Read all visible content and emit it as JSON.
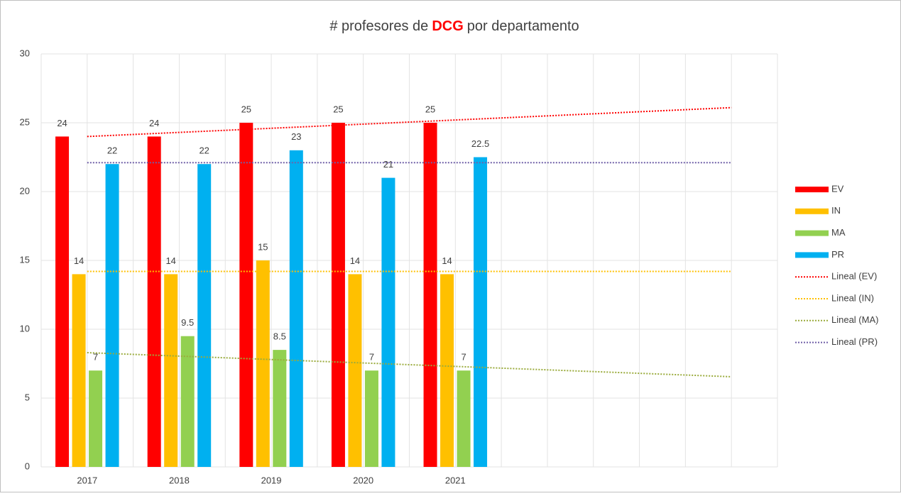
{
  "chart_data": {
    "type": "bar",
    "title": [
      "# profesores de",
      "DCG",
      "por departamento"
    ],
    "title_highlight_color": "#ff0000",
    "categories": [
      "2017",
      "2018",
      "2019",
      "2020",
      "2021",
      null,
      null,
      null
    ],
    "series": [
      {
        "name": "EV",
        "color": "#ff0000",
        "values": [
          24,
          24,
          25,
          25,
          25,
          null,
          null,
          null
        ],
        "trendline": {
          "name": "Lineal (EV)",
          "color": "#ff0000"
        }
      },
      {
        "name": "IN",
        "color": "#ffc000",
        "values": [
          14,
          14,
          15,
          14,
          14,
          null,
          null,
          null
        ],
        "trendline": {
          "name": "Lineal (IN)",
          "color": "#ffc000"
        }
      },
      {
        "name": "MA",
        "color": "#92d050",
        "values": [
          7,
          9.5,
          8.5,
          7,
          7,
          null,
          null,
          null
        ],
        "trendline": {
          "name": "Lineal (MA)",
          "color": "#9aab3c"
        }
      },
      {
        "name": "PR",
        "color": "#00b0f0",
        "values": [
          22,
          22,
          23,
          21,
          22.5,
          null,
          null,
          null
        ],
        "trendline": {
          "name": "Lineal (PR)",
          "color": "#7060a8"
        }
      }
    ],
    "ylim": [
      0,
      30
    ],
    "yticks": [
      0,
      5,
      10,
      15,
      20,
      25,
      30
    ],
    "grid": true,
    "legend": "right"
  }
}
